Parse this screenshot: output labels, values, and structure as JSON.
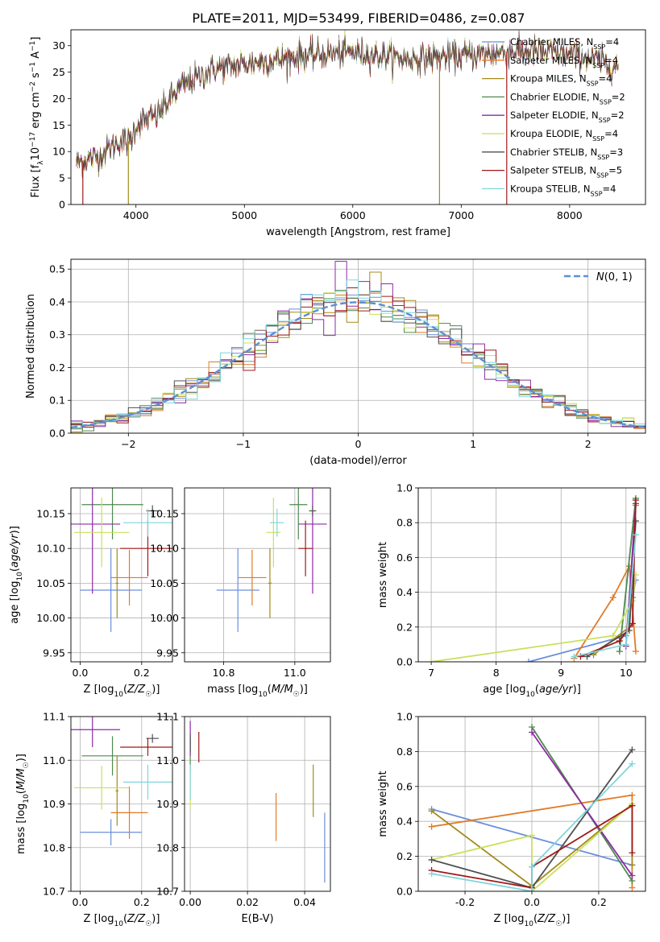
{
  "figure": {
    "title": "PLATE=2011, MJD=53499, FIBERID=0486, z=0.087"
  },
  "series_colors": [
    "#6a8fdc",
    "#e07b28",
    "#a58a1c",
    "#4e8a4e",
    "#8e2aa8",
    "#c8e05a",
    "#505050",
    "#a01818",
    "#7fd6dc"
  ],
  "series_names": [
    "Chabrier MILES, N_SSP=4",
    "Salpeter MILES, N_SSP=4",
    "Kroupa MILES, N_SSP=4",
    "Chabrier ELODIE, N_SSP=2",
    "Salpeter ELODIE, N_SSP=2",
    "Kroupa ELODIE, N_SSP=4",
    "Chabrier STELIB, N_SSP=3",
    "Salpeter STELIB, N_SSP=5",
    "Kroupa STELIB, N_SSP=4"
  ],
  "chart_data": [
    {
      "id": "spectrum",
      "type": "line",
      "xlabel": "wavelength [Angstrom, rest frame]",
      "ylabel": "Flux [f_λ 10^-17 erg cm^-2 s^-1 A^-1]",
      "xlim": [
        3400,
        8700
      ],
      "ylim": [
        0,
        33
      ],
      "xticks": [
        4000,
        5000,
        6000,
        7000,
        8000
      ],
      "yticks": [
        0,
        5,
        10,
        15,
        20,
        25,
        30
      ],
      "x_start": 3450,
      "x_end": 8450,
      "continuum_knots": [
        [
          3450,
          8
        ],
        [
          3650,
          9
        ],
        [
          3850,
          12
        ],
        [
          3950,
          12
        ],
        [
          4000,
          15
        ],
        [
          4200,
          17
        ],
        [
          4400,
          22
        ],
        [
          4700,
          25.5
        ],
        [
          5000,
          26.5
        ],
        [
          5500,
          28
        ],
        [
          6000,
          28.8
        ],
        [
          6500,
          27.5
        ],
        [
          7000,
          28
        ],
        [
          7500,
          29
        ],
        [
          7800,
          28.7
        ],
        [
          8100,
          28
        ],
        [
          8450,
          26
        ]
      ],
      "legend_location": "upper-right"
    },
    {
      "id": "residuals",
      "type": "bar",
      "xlabel": "(data-model)/error",
      "ylabel": "Normed distribution",
      "xlim": [
        -2.5,
        2.5
      ],
      "ylim": [
        0,
        0.53
      ],
      "xticks": [
        -2,
        -1,
        0,
        1,
        2
      ],
      "yticks": [
        0.0,
        0.1,
        0.2,
        0.3,
        0.4,
        0.5
      ],
      "bin_width": 0.1,
      "reference_curve": {
        "name": "N(0,1)",
        "color": "#5b8fd6",
        "style": "dashed"
      },
      "legend_location": "upper-right",
      "grid": true
    },
    {
      "id": "age_vs_Z",
      "type": "scatter",
      "xlabel": "Z [log10(Z/Z☉)]",
      "ylabel": "age  [log10(age/yr)]",
      "xlim": [
        -0.03,
        0.3
      ],
      "ylim": [
        9.937,
        10.187
      ],
      "xticks": [
        0.0,
        0.2
      ],
      "yticks": [
        9.95,
        10.0,
        10.05,
        10.1,
        10.15
      ],
      "points": [
        {
          "x": 0.1,
          "y": 10.04,
          "xerr": 0.1,
          "yerr": 0.06
        },
        {
          "x": 0.16,
          "y": 10.058,
          "xerr": 0.06,
          "yerr": 0.04
        },
        {
          "x": 0.12,
          "y": 10.05,
          "xerr": 0.005,
          "yerr": 0.05
        },
        {
          "x": 0.105,
          "y": 10.163,
          "xerr": 0.1,
          "yerr": 0.05
        },
        {
          "x": 0.04,
          "y": 10.135,
          "xerr": 0.09,
          "yerr": 0.1
        },
        {
          "x": 0.07,
          "y": 10.123,
          "xerr": 0.09,
          "yerr": 0.05
        },
        {
          "x": 0.235,
          "y": 10.154,
          "xerr": 0.02,
          "yerr": 0.008
        },
        {
          "x": 0.22,
          "y": 10.1,
          "xerr": 0.09,
          "yerr": 0.04
        },
        {
          "x": 0.22,
          "y": 10.137,
          "xerr": 0.08,
          "yerr": 0.02
        }
      ]
    },
    {
      "id": "age_vs_mass",
      "type": "scatter",
      "xlabel": "mass [log10(M/M☉)]",
      "ylabel": "",
      "xlim": [
        10.69,
        11.1
      ],
      "ylim": [
        9.937,
        10.187
      ],
      "xticks": [
        10.8,
        11.0
      ],
      "yticks": [
        9.95,
        10.0,
        10.05,
        10.1,
        10.15
      ],
      "points": [
        {
          "x": 10.84,
          "y": 10.04,
          "xerr": 0.06,
          "yerr": 0.06
        },
        {
          "x": 10.88,
          "y": 10.058,
          "xerr": 0.04,
          "yerr": 0.04
        },
        {
          "x": 10.93,
          "y": 10.05,
          "xerr": 0.005,
          "yerr": 0.05
        },
        {
          "x": 11.01,
          "y": 10.163,
          "xerr": 0.025,
          "yerr": 0.05
        },
        {
          "x": 11.05,
          "y": 10.135,
          "xerr": 0.04,
          "yerr": 0.1
        },
        {
          "x": 10.94,
          "y": 10.123,
          "xerr": 0.02,
          "yerr": 0.05
        },
        {
          "x": 11.05,
          "y": 10.154,
          "xerr": 0.01,
          "yerr": 0.008
        },
        {
          "x": 11.03,
          "y": 10.1,
          "xerr": 0.02,
          "yerr": 0.04
        },
        {
          "x": 10.95,
          "y": 10.137,
          "xerr": 0.02,
          "yerr": 0.02
        }
      ]
    },
    {
      "id": "weight_vs_age",
      "type": "line",
      "xlabel": "age  [log10(age/yr)]",
      "ylabel": "mass weight",
      "xlim": [
        6.8,
        10.3
      ],
      "ylim": [
        0,
        1.0
      ],
      "xticks": [
        7,
        8,
        9,
        10
      ],
      "yticks": [
        0.0,
        0.2,
        0.4,
        0.6,
        0.8,
        1.0
      ],
      "series": [
        {
          "points": [
            [
              8.5,
              0.0
            ],
            [
              10.0,
              0.15
            ],
            [
              10.1,
              0.37
            ],
            [
              10.15,
              0.47
            ]
          ]
        },
        {
          "points": [
            [
              9.2,
              0.02
            ],
            [
              9.8,
              0.37
            ],
            [
              10.05,
              0.55
            ],
            [
              10.15,
              0.06
            ]
          ]
        },
        {
          "points": [
            [
              9.5,
              0.04
            ],
            [
              10.05,
              0.2
            ],
            [
              10.1,
              0.5
            ],
            [
              10.15,
              0.9
            ]
          ]
        },
        {
          "points": [
            [
              9.9,
              0.06
            ],
            [
              10.15,
              0.94
            ]
          ]
        },
        {
          "points": [
            [
              10.0,
              0.09
            ],
            [
              10.15,
              0.91
            ]
          ]
        },
        {
          "points": [
            [
              7.0,
              0.0
            ],
            [
              9.8,
              0.15
            ],
            [
              10.1,
              0.35
            ],
            [
              10.15,
              0.5
            ]
          ]
        },
        {
          "points": [
            [
              9.4,
              0.03
            ],
            [
              10.05,
              0.18
            ],
            [
              10.15,
              0.81
            ]
          ]
        },
        {
          "points": [
            [
              9.3,
              0.03
            ],
            [
              9.9,
              0.12
            ],
            [
              10.1,
              0.22
            ],
            [
              10.15,
              0.93
            ]
          ]
        },
        {
          "points": [
            [
              9.2,
              0.03
            ],
            [
              10.0,
              0.1
            ],
            [
              10.15,
              0.73
            ]
          ]
        }
      ]
    },
    {
      "id": "mass_vs_Z",
      "type": "scatter",
      "xlabel": "Z [log10(Z/Z☉)]",
      "ylabel": "mass [log10(M/M☉)]",
      "xlim": [
        -0.03,
        0.3
      ],
      "ylim": [
        10.7,
        11.1
      ],
      "xticks": [
        0.0,
        0.2
      ],
      "yticks": [
        10.7,
        10.8,
        10.9,
        11.0,
        11.1
      ],
      "points": [
        {
          "x": 0.1,
          "y": 10.835,
          "xerr": 0.1,
          "yerr": 0.03
        },
        {
          "x": 0.16,
          "y": 10.88,
          "xerr": 0.06,
          "yerr": 0.06
        },
        {
          "x": 0.12,
          "y": 10.93,
          "xerr": 0.005,
          "yerr": 0.08
        },
        {
          "x": 0.105,
          "y": 11.01,
          "xerr": 0.1,
          "yerr": 0.045
        },
        {
          "x": 0.04,
          "y": 11.07,
          "xerr": 0.09,
          "yerr": 0.04
        },
        {
          "x": 0.07,
          "y": 10.937,
          "xerr": 0.09,
          "yerr": 0.05
        },
        {
          "x": 0.235,
          "y": 11.05,
          "xerr": 0.02,
          "yerr": 0.01
        },
        {
          "x": 0.22,
          "y": 11.03,
          "xerr": 0.09,
          "yerr": 0.02
        },
        {
          "x": 0.22,
          "y": 10.95,
          "xerr": 0.08,
          "yerr": 0.04
        }
      ]
    },
    {
      "id": "mass_vs_EBV",
      "type": "scatter",
      "xlabel": "E(B-V)",
      "ylabel": "",
      "xlim": [
        -0.002,
        0.049
      ],
      "ylim": [
        10.7,
        11.1
      ],
      "xticks": [
        0.0,
        0.02,
        0.04
      ],
      "yticks": [
        10.7,
        10.8,
        10.9,
        11.0,
        11.1
      ],
      "points": [
        {
          "x": 0.047,
          "y": 10.8,
          "xerr": 0.0,
          "yerr": 0.08
        },
        {
          "x": 0.03,
          "y": 10.87,
          "xerr": 0.0,
          "yerr": 0.055
        },
        {
          "x": 0.043,
          "y": 10.93,
          "xerr": 0.0,
          "yerr": 0.06
        },
        {
          "x": 0.0,
          "y": 11.01,
          "xerr": 0.0,
          "yerr": 0.04
        },
        {
          "x": 0.0,
          "y": 11.05,
          "xerr": 0.0,
          "yerr": 0.04
        },
        {
          "x": 0.0,
          "y": 10.93,
          "xerr": 0.0,
          "yerr": 0.04
        },
        {
          "x": 0.0,
          "y": 11.04,
          "xerr": 0.0,
          "yerr": 0.02
        },
        {
          "x": 0.003,
          "y": 11.03,
          "xerr": 0.0,
          "yerr": 0.035
        },
        {
          "x": 0.0,
          "y": 10.95,
          "xerr": 0.0,
          "yerr": 0.04
        }
      ]
    },
    {
      "id": "weight_vs_Z",
      "type": "line",
      "xlabel": "Z [log10(Z/Z☉)]",
      "ylabel": "mass weight",
      "xlim": [
        -0.34,
        0.34
      ],
      "ylim": [
        0,
        1.0
      ],
      "xticks": [
        -0.2,
        0.0,
        0.2
      ],
      "yticks": [
        0.0,
        0.2,
        0.4,
        0.6,
        0.8,
        1.0
      ],
      "series": [
        {
          "points": [
            [
              -0.3,
              0.47
            ],
            [
              0.3,
              0.15
            ]
          ]
        },
        {
          "points": [
            [
              -0.3,
              0.37
            ],
            [
              0.3,
              0.55
            ],
            [
              0.3,
              0.02
            ]
          ]
        },
        {
          "points": [
            [
              -0.3,
              0.46
            ],
            [
              0.0,
              0.03
            ],
            [
              0.3,
              0.5
            ],
            [
              0.3,
              0.15
            ]
          ]
        },
        {
          "points": [
            [
              0.0,
              0.94
            ],
            [
              0.3,
              0.06
            ]
          ]
        },
        {
          "points": [
            [
              0.0,
              0.91
            ],
            [
              0.3,
              0.09
            ]
          ]
        },
        {
          "points": [
            [
              -0.3,
              0.18
            ],
            [
              0.0,
              0.32
            ],
            [
              0.0,
              0.0
            ],
            [
              0.3,
              0.5
            ]
          ]
        },
        {
          "points": [
            [
              -0.3,
              0.18
            ],
            [
              0.0,
              0.02
            ],
            [
              0.3,
              0.81
            ]
          ]
        },
        {
          "points": [
            [
              -0.3,
              0.12
            ],
            [
              0.0,
              0.02
            ],
            [
              0.0,
              0.14
            ],
            [
              0.3,
              0.49
            ],
            [
              0.3,
              0.22
            ]
          ]
        },
        {
          "points": [
            [
              -0.3,
              0.1
            ],
            [
              0.0,
              0.0
            ],
            [
              0.0,
              0.14
            ],
            [
              0.3,
              0.73
            ]
          ]
        }
      ]
    }
  ]
}
